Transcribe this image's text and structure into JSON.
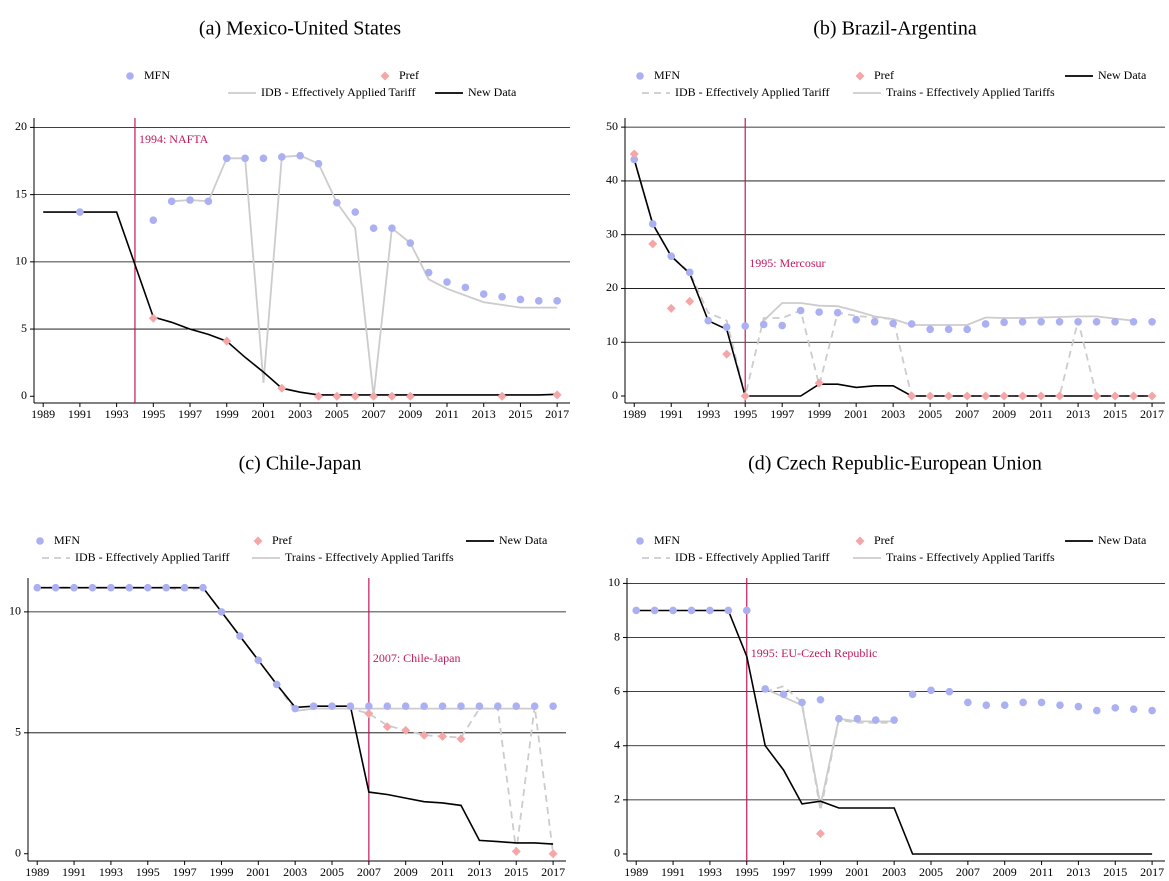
{
  "chart_data": [
    {
      "type": "line",
      "title": "(a)  Mexico-United States",
      "xlim": [
        1988.5,
        2017.7
      ],
      "xticks": [
        1989,
        1991,
        1993,
        1995,
        1997,
        1999,
        2001,
        2003,
        2005,
        2007,
        2009,
        2011,
        2013,
        2015,
        2017
      ],
      "ylim": [
        -0.5,
        20.7
      ],
      "yticks": [
        0,
        5,
        10,
        15,
        20
      ],
      "grid": true,
      "annotation": {
        "x": 1994,
        "text": "1994: NAFTA",
        "color": "#c2185b"
      },
      "series": [
        {
          "name": "MFN",
          "color": "#aab0f2",
          "marker": "circle",
          "x": [
            1991,
            1995,
            1996,
            1997,
            1998,
            1999,
            2000,
            2001,
            2002,
            2003,
            2004,
            2005,
            2006,
            2007,
            2008,
            2009,
            2010,
            2011,
            2012,
            2013,
            2014,
            2015,
            2016,
            2017
          ],
          "values": [
            13.7,
            13.1,
            14.5,
            14.6,
            14.5,
            17.7,
            17.7,
            17.7,
            17.8,
            17.9,
            17.3,
            14.4,
            13.7,
            12.5,
            12.5,
            11.4,
            9.2,
            8.5,
            8.1,
            7.6,
            7.4,
            7.2,
            7.1,
            7.1
          ]
        },
        {
          "name": "Pref",
          "color": "#f5a7a7",
          "marker": "diamond",
          "x": [
            1995,
            1999,
            2002,
            2004,
            2005,
            2006,
            2007,
            2008,
            2009,
            2014,
            2017
          ],
          "values": [
            5.8,
            4.1,
            0.6,
            0,
            0,
            0,
            0,
            0,
            0,
            0,
            0.1
          ]
        },
        {
          "name": "IDB - Effectively Applied Tariff",
          "color": "#cccccc",
          "dashed": false,
          "x": [
            1996,
            1997,
            1998,
            1999,
            2000,
            2001,
            2002,
            2003,
            2004,
            2005,
            2006,
            2007,
            2008,
            2009,
            2010,
            2011,
            2012,
            2013,
            2014,
            2015,
            2016,
            2017
          ],
          "values": [
            14.5,
            14.6,
            14.5,
            17.7,
            17.7,
            1.0,
            17.8,
            17.9,
            17.3,
            14.4,
            12.5,
            0,
            12.5,
            11.4,
            8.7,
            8.0,
            7.5,
            7.0,
            6.8,
            6.6,
            6.6,
            6.6
          ]
        },
        {
          "name": "New Data",
          "color": "#000000",
          "dashed": false,
          "x": [
            1989,
            1990,
            1991,
            1992,
            1993,
            1995,
            1996,
            1997,
            1998,
            1999,
            2000,
            2001,
            2002,
            2003,
            2004,
            2005,
            2006,
            2007,
            2008,
            2009,
            2010,
            2011,
            2012,
            2013,
            2014,
            2015,
            2016,
            2017
          ],
          "values": [
            13.7,
            13.7,
            13.7,
            13.7,
            13.7,
            5.9,
            5.5,
            5.0,
            4.6,
            4.1,
            2.9,
            1.8,
            0.6,
            0.3,
            0.1,
            0.1,
            0.1,
            0.1,
            0.1,
            0.1,
            0.1,
            0.1,
            0.1,
            0.1,
            0.1,
            0.1,
            0.1,
            0.15
          ]
        }
      ]
    },
    {
      "type": "line",
      "title": "(b)  Brazil-Argentina",
      "xlim": [
        1988.5,
        2017.7
      ],
      "xticks": [
        1989,
        1991,
        1993,
        1995,
        1997,
        1999,
        2001,
        2003,
        2005,
        2007,
        2009,
        2011,
        2013,
        2015,
        2017
      ],
      "ylim": [
        -1.3,
        51.7
      ],
      "yticks": [
        0,
        10,
        20,
        30,
        40,
        50
      ],
      "grid": true,
      "annotation": {
        "x": 1995,
        "text": "1995: Mercosur",
        "color": "#c2185b"
      },
      "series": [
        {
          "name": "MFN",
          "color": "#aab0f2",
          "marker": "circle",
          "x": [
            1989,
            1990,
            1991,
            1992,
            1993,
            1994,
            1995,
            1996,
            1997,
            1998,
            1999,
            2000,
            2001,
            2002,
            2003,
            2004,
            2005,
            2006,
            2007,
            2008,
            2009,
            2010,
            2011,
            2012,
            2013,
            2014,
            2015,
            2016,
            2017
          ],
          "values": [
            44,
            32,
            26,
            23,
            14,
            12.8,
            13,
            13.3,
            13.1,
            15.9,
            15.6,
            15.5,
            14.2,
            13.8,
            13.5,
            13.4,
            12.4,
            12.4,
            12.4,
            13.4,
            13.7,
            13.8,
            13.8,
            13.8,
            13.8,
            13.8,
            13.8,
            13.8,
            13.8
          ]
        },
        {
          "name": "Pref",
          "color": "#f5a7a7",
          "marker": "diamond",
          "x": [
            1989,
            1990,
            1991,
            1992,
            1994,
            1995,
            1999,
            2004,
            2005,
            2006,
            2007,
            2008,
            2009,
            2010,
            2011,
            2012,
            2014,
            2015,
            2016,
            2017
          ],
          "values": [
            45,
            28.3,
            16.3,
            17.6,
            7.8,
            0,
            2.4,
            0,
            0,
            0,
            0,
            0,
            0,
            0,
            0,
            0,
            0,
            0,
            0,
            0
          ]
        },
        {
          "name": "IDB - Effectively Applied Tariff",
          "color": "#cccccc",
          "dashed": true,
          "x": [
            1989,
            1990,
            1991,
            1992,
            1993,
            1994,
            1995,
            1996,
            1997,
            1998,
            1999,
            2000,
            2001,
            2002,
            2003,
            2004,
            2005,
            2006,
            2007,
            2008,
            2009,
            2010,
            2011,
            2012,
            2013,
            2014,
            2015,
            2016,
            2017
          ],
          "values": [
            44,
            32,
            26,
            23,
            15.5,
            14,
            0,
            14.5,
            14.5,
            15.9,
            2,
            15.5,
            14.9,
            14.6,
            14.3,
            0,
            0,
            0,
            0,
            0,
            0,
            0,
            0,
            0,
            14,
            0,
            0,
            0,
            0
          ]
        },
        {
          "name": "Trains - Effectively Applied Tariffs",
          "color": "#cccccc",
          "dashed": false,
          "x": [
            1996,
            1997,
            1998,
            1999,
            2000,
            2001,
            2002,
            2003,
            2004,
            2005,
            2006,
            2007,
            2008,
            2009,
            2010,
            2011,
            2012,
            2013,
            2014,
            2015,
            2016
          ],
          "values": [
            14,
            17.3,
            17.3,
            16.8,
            16.7,
            15.8,
            14.8,
            14.3,
            13.2,
            13.2,
            13.2,
            13.2,
            14.6,
            14.5,
            14.5,
            14.6,
            14.7,
            14.8,
            14.8,
            14.4,
            14
          ]
        },
        {
          "name": "New Data",
          "color": "#000000",
          "dashed": false,
          "x": [
            1989,
            1990,
            1991,
            1992,
            1993,
            1994,
            1995,
            1996,
            1997,
            1998,
            1999,
            2000,
            2001,
            2002,
            2003,
            2004,
            2005,
            2006,
            2007,
            2008,
            2009,
            2010,
            2011,
            2012,
            2013,
            2014,
            2015,
            2016,
            2017
          ],
          "values": [
            44,
            32,
            26,
            22.8,
            14,
            12.4,
            0,
            0,
            0,
            0,
            2.2,
            2.2,
            1.6,
            1.9,
            1.9,
            0,
            0,
            0,
            0,
            0,
            0,
            0,
            0,
            0,
            0,
            0,
            0,
            0,
            0
          ]
        }
      ]
    },
    {
      "type": "line",
      "title": "(c)  Chile-Japan",
      "xlim": [
        1988.5,
        2017.7
      ],
      "xticks": [
        1989,
        1991,
        1993,
        1995,
        1997,
        1999,
        2001,
        2003,
        2005,
        2007,
        2009,
        2011,
        2013,
        2015,
        2017
      ],
      "ylim": [
        -0.3,
        11.4
      ],
      "yticks": [
        0,
        5,
        10
      ],
      "grid": true,
      "annotation": {
        "x": 2007,
        "text": "2007: Chile-Japan",
        "color": "#c2185b"
      },
      "series": [
        {
          "name": "MFN",
          "color": "#aab0f2",
          "marker": "circle",
          "x": [
            1989,
            1990,
            1991,
            1992,
            1993,
            1994,
            1995,
            1996,
            1997,
            1998,
            1999,
            2000,
            2001,
            2002,
            2003,
            2004,
            2005,
            2006,
            2007,
            2008,
            2009,
            2010,
            2011,
            2012,
            2013,
            2014,
            2015,
            2016,
            2017
          ],
          "values": [
            11,
            11,
            11,
            11,
            11,
            11,
            11,
            11,
            11,
            11,
            10,
            9,
            8,
            7,
            6,
            6.1,
            6.1,
            6.1,
            6.1,
            6.1,
            6.1,
            6.1,
            6.1,
            6.1,
            6.1,
            6.1,
            6.1,
            6.1,
            6.1
          ]
        },
        {
          "name": "Pref",
          "color": "#f5a7a7",
          "marker": "diamond",
          "x": [
            2007,
            2008,
            2009,
            2010,
            2011,
            2012,
            2015,
            2017
          ],
          "values": [
            5.8,
            5.25,
            5.1,
            4.9,
            4.85,
            4.75,
            0.1,
            0
          ]
        },
        {
          "name": "IDB - Effectively Applied Tariff",
          "color": "#cccccc",
          "dashed": true,
          "x": [
            1989,
            1990,
            1991,
            1992,
            1993,
            1994,
            1995,
            1996,
            1997,
            1998,
            1999,
            2000,
            2001,
            2002,
            2003,
            2004,
            2005,
            2006,
            2007,
            2008,
            2009,
            2010,
            2011,
            2012,
            2013,
            2014,
            2015,
            2016,
            2017
          ],
          "values": [
            11,
            11,
            11,
            11,
            11,
            11,
            11,
            11,
            10.9,
            11,
            10,
            9,
            8,
            7,
            5.9,
            6,
            6,
            6,
            5.8,
            5.3,
            5.1,
            4.9,
            4.85,
            4.8,
            6,
            6,
            0.1,
            6.1,
            0
          ]
        },
        {
          "name": "Trains - Effectively Applied Tariffs",
          "color": "#cccccc",
          "dashed": false,
          "x": [
            2003,
            2004,
            2005,
            2006,
            2007,
            2008,
            2009,
            2010,
            2011,
            2012,
            2013,
            2014,
            2015,
            2016
          ],
          "values": [
            5.9,
            6,
            6,
            6,
            6,
            6,
            6,
            6,
            6,
            6,
            6,
            6,
            6,
            6
          ]
        },
        {
          "name": "New Data",
          "color": "#000000",
          "dashed": false,
          "x": [
            1989,
            1990,
            1991,
            1992,
            1993,
            1994,
            1995,
            1996,
            1997,
            1998,
            1999,
            2000,
            2001,
            2002,
            2003,
            2004,
            2005,
            2006,
            2007,
            2008,
            2009,
            2010,
            2011,
            2012,
            2013,
            2014,
            2015,
            2016,
            2017
          ],
          "values": [
            11,
            11,
            11,
            11,
            11,
            11,
            11,
            11,
            11,
            11,
            10,
            9,
            8,
            7,
            6.05,
            6.1,
            6.1,
            6.1,
            2.55,
            2.45,
            2.3,
            2.15,
            2.1,
            2,
            0.55,
            0.5,
            0.45,
            0.45,
            0.4
          ]
        }
      ]
    },
    {
      "type": "line",
      "title": "(d)  Czech Republic-European Union",
      "xlim": [
        1988.5,
        2017.7
      ],
      "xticks": [
        1989,
        1991,
        1993,
        1995,
        1997,
        1999,
        2001,
        2003,
        2005,
        2007,
        2009,
        2011,
        2013,
        2015,
        2017
      ],
      "ylim": [
        -0.26,
        10.2
      ],
      "yticks": [
        0,
        2,
        4,
        6,
        8,
        10
      ],
      "grid": true,
      "annotation": {
        "x": 1995,
        "text": "1995: EU-Czech Republic",
        "color": "#c2185b"
      },
      "series": [
        {
          "name": "MFN",
          "color": "#aab0f2",
          "marker": "circle",
          "x": [
            1989,
            1990,
            1991,
            1992,
            1993,
            1994,
            1995,
            1996,
            1997,
            1998,
            1999,
            2000,
            2001,
            2002,
            2003,
            2004,
            2005,
            2006,
            2007,
            2008,
            2009,
            2010,
            2011,
            2012,
            2013,
            2014,
            2015,
            2016,
            2017
          ],
          "values": [
            9,
            9,
            9,
            9,
            9,
            9,
            9,
            6.1,
            5.9,
            5.6,
            5.7,
            5,
            5,
            4.95,
            4.95,
            5.9,
            6.05,
            6,
            5.6,
            5.5,
            5.5,
            5.6,
            5.6,
            5.5,
            5.45,
            5.3,
            5.4,
            5.35,
            5.3
          ]
        },
        {
          "name": "Pref",
          "color": "#f5a7a7",
          "marker": "diamond",
          "x": [
            1999
          ],
          "values": [
            0.75
          ]
        },
        {
          "name": "IDB - Effectively Applied Tariff",
          "color": "#cccccc",
          "dashed": true,
          "x": [
            1996,
            1997,
            1998,
            1999,
            2000,
            2001,
            2002,
            2003
          ],
          "values": [
            6.0,
            6.2,
            5.6,
            1.6,
            4.95,
            4.85,
            4.85,
            4.85
          ]
        },
        {
          "name": "Trains - Effectively Applied Tariffs",
          "color": "#cccccc",
          "dashed": false,
          "x": [
            1996,
            1997,
            1998,
            1999,
            2000,
            2001,
            2002,
            2003
          ],
          "values": [
            6.1,
            5.8,
            5.5,
            1.8,
            5,
            4.9,
            4.9,
            4.9
          ]
        },
        {
          "name": "New Data",
          "color": "#000000",
          "dashed": false,
          "x": [
            1989,
            1990,
            1991,
            1992,
            1993,
            1994,
            1995,
            1996,
            1997,
            1998,
            1999,
            2000,
            2001,
            2002,
            2003,
            2004,
            2005,
            2006,
            2007,
            2008,
            2009,
            2010,
            2011,
            2012,
            2013,
            2014,
            2015,
            2016,
            2017
          ],
          "values": [
            9,
            9,
            9,
            9,
            9,
            9,
            7.3,
            4,
            3.1,
            1.85,
            1.95,
            1.7,
            1.7,
            1.7,
            1.7,
            0,
            0,
            0,
            0,
            0,
            0,
            0,
            0,
            0,
            0,
            0,
            0,
            0,
            0
          ]
        }
      ]
    }
  ]
}
